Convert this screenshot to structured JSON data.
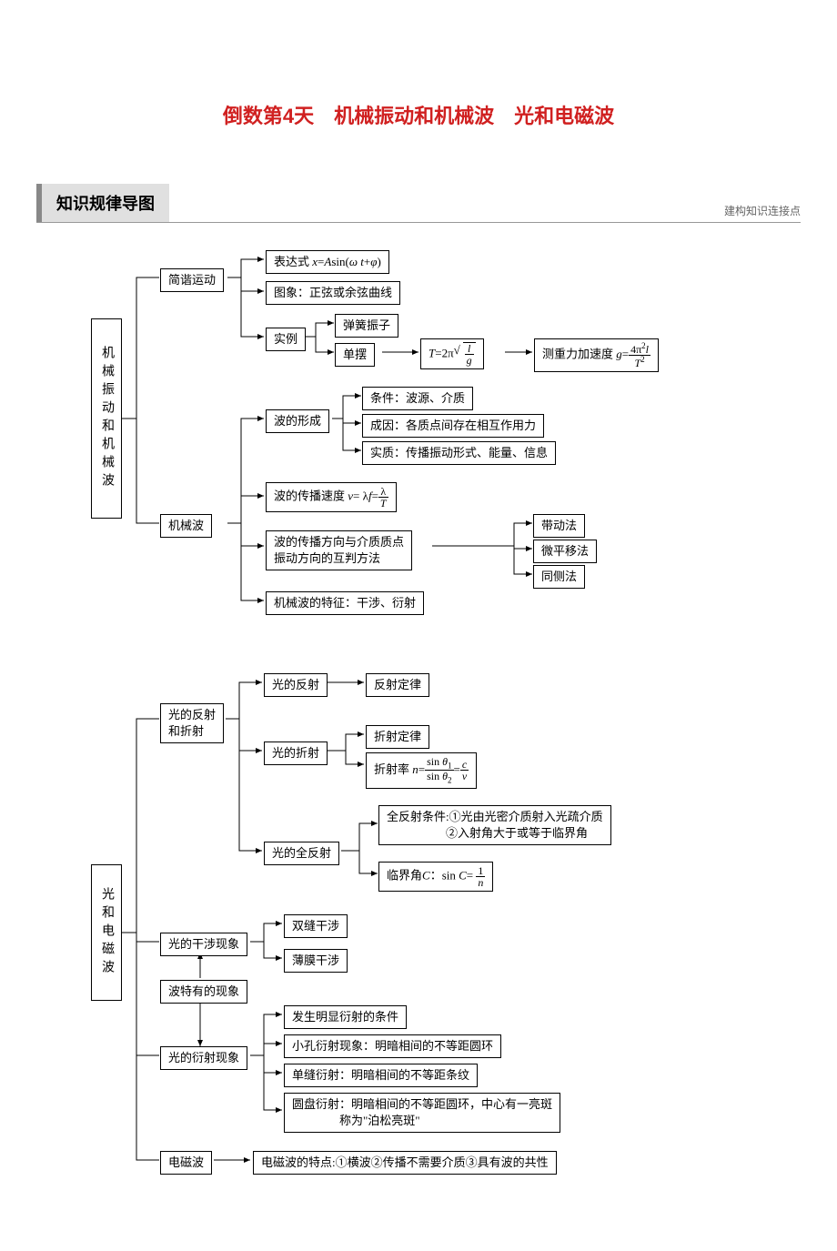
{
  "title_color": "#d02020",
  "title": "倒数第4天　机械振动和机械波　光和电磁波",
  "section_tab": "知识规律导图",
  "section_sub": "建构知识连接点",
  "d1": {
    "root": "机械振动和机械波",
    "n_shm": "简谐运动",
    "n_expr": "表达式 <i>x</i>=<i>A</i>sin(<i>ω t</i>+<i>φ</i>)",
    "n_graph": "图象：正弦或余弦曲线",
    "n_example": "实例",
    "n_spring": "弹簧振子",
    "n_pendulum": "单摆",
    "n_period": "<i>T</i>=2π<span class='sqrt' style='margin-left:10px'><span class='frac'><span class='num'><i>l</i></span><span class='den'><i>g</i></span></span></span>",
    "n_gravity": "测重力加速度 <i>g</i>=<span class='frac'><span class='num'>4π<sup>2</sup><i>l</i></span><span class='den'><i>T</i><sup>2</sup></span></span>",
    "n_wave": "机械波",
    "n_form": "波的形成",
    "n_cond": "条件：波源、介质",
    "n_cause": "成因：各质点间存在相互作用力",
    "n_essence": "实质：传播振动形式、能量、信息",
    "n_speed": "波的传播速度 <i>v</i>= λ<i>f</i>=<span class='frac'><span class='num'>λ</span><span class='den'><i>T</i></span></span>",
    "n_dir": "波的传播方向与介质质点<br>振动方向的互判方法",
    "n_m1": "带动法",
    "n_m2": "微平移法",
    "n_m3": "同侧法",
    "n_feat": "机械波的特征：干涉、衍射"
  },
  "d2": {
    "root": "光和电磁波",
    "n_refrefr": "光的反射<br>和折射",
    "n_refl": "光的反射",
    "n_refl_law": "反射定律",
    "n_refr": "光的折射",
    "n_refr_law": "折射定律",
    "n_refr_idx": "折射率 <i>n</i>=<span class='frac'><span class='num'>sin <i>θ</i><sub>1</sub></span><span class='den'>sin <i>θ</i><sub>2</sub></span></span>=<span class='frac'><span class='num'><i>c</i></span><span class='den'><i>v</i></span></span>",
    "n_total": "光的全反射",
    "n_total_cond": "全反射条件:①光由光密介质射入光疏介质<br>　　　　　②入射角大于或等于临界角",
    "n_crit": "临界角<i>C</i>：sin <i>C</i>= <span class='frac'><span class='num'>1</span><span class='den'><i>n</i></span></span>",
    "n_interf": "光的干涉现象",
    "n_double": "双缝干涉",
    "n_thin": "薄膜干涉",
    "n_wavephen": "波特有的现象",
    "n_diffr": "光的衍射现象",
    "n_diff1": "发生明显衍射的条件",
    "n_diff2": "小孔衍射现象：明暗相间的不等距圆环",
    "n_diff3": "单缝衍射：明暗相间的不等距条纹",
    "n_diff4": "圆盘衍射：明暗相间的不等距圆环，中心有一亮斑<br>　　　　称为\"泊松亮斑\"",
    "n_em": "电磁波",
    "n_em_feat": "电磁波的特点:①横波②传播不需要介质③具有波的共性"
  }
}
